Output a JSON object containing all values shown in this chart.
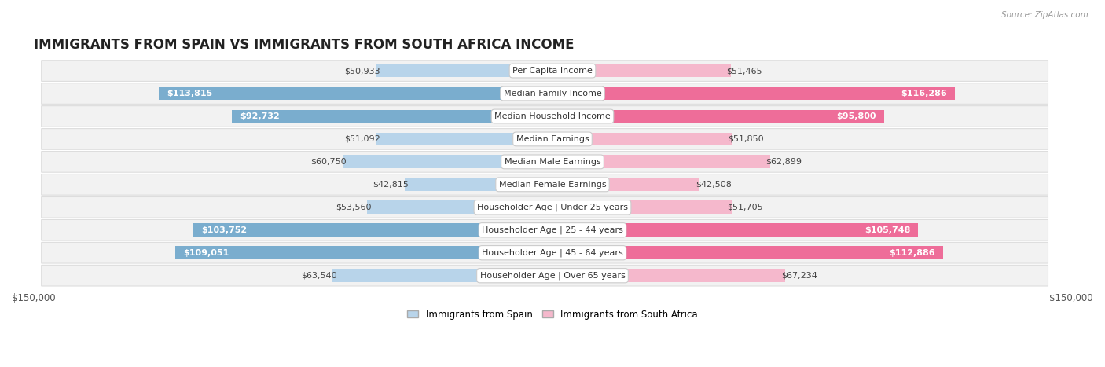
{
  "title": "IMMIGRANTS FROM SPAIN VS IMMIGRANTS FROM SOUTH AFRICA INCOME",
  "source": "Source: ZipAtlas.com",
  "max_value": 150000,
  "categories": [
    "Per Capita Income",
    "Median Family Income",
    "Median Household Income",
    "Median Earnings",
    "Median Male Earnings",
    "Median Female Earnings",
    "Householder Age | Under 25 years",
    "Householder Age | 25 - 44 years",
    "Householder Age | 45 - 64 years",
    "Householder Age | Over 65 years"
  ],
  "spain_values": [
    50933,
    113815,
    92732,
    51092,
    60750,
    42815,
    53560,
    103752,
    109051,
    63540
  ],
  "southafrica_values": [
    51465,
    116286,
    95800,
    51850,
    62899,
    42508,
    51705,
    105748,
    112886,
    67234
  ],
  "spain_labels": [
    "$50,933",
    "$113,815",
    "$92,732",
    "$51,092",
    "$60,750",
    "$42,815",
    "$53,560",
    "$103,752",
    "$109,051",
    "$63,540"
  ],
  "southafrica_labels": [
    "$51,465",
    "$116,286",
    "$95,800",
    "$51,850",
    "$62,899",
    "$42,508",
    "$51,705",
    "$105,748",
    "$112,886",
    "$67,234"
  ],
  "spain_color_light": "#b8d4ea",
  "spain_color_dark": "#7aadce",
  "southafrica_color_light": "#f5b8cc",
  "southafrica_color_dark": "#ee6d99",
  "row_bg_color": "#f2f2f2",
  "background_color": "#ffffff",
  "title_fontsize": 12,
  "label_fontsize": 8,
  "category_fontsize": 8,
  "legend_fontsize": 8.5,
  "axis_label_fontsize": 8.5,
  "inside_label_threshold": 75000,
  "bar_height": 0.58
}
